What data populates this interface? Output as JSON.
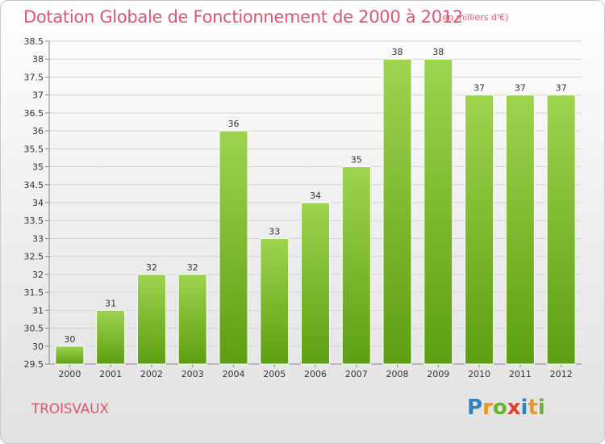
{
  "title": "Dotation Globale de Fonctionnement de 2000 à 2012",
  "subtitle": "(en milliers d'€)",
  "commune": "TROISVAUX",
  "logo": {
    "text": "Proxiti",
    "letters": [
      {
        "ch": "P",
        "color": "#2f82c7"
      },
      {
        "ch": "r",
        "color": "#e39a1f"
      },
      {
        "ch": "o",
        "color": "#6bb42a"
      },
      {
        "ch": "x",
        "color": "#e2422d"
      },
      {
        "ch": "i",
        "color": "#2f82c7"
      },
      {
        "ch": "t",
        "color": "#e39a1f"
      },
      {
        "ch": "i",
        "color": "#6bb42a"
      }
    ]
  },
  "colors": {
    "title": "#e0566f",
    "bar_top": "#9ed44e",
    "bar_bottom": "#5d9e12",
    "grid": "#d4d4d4",
    "axis_text": "#333333"
  },
  "chart_data": {
    "type": "bar",
    "categories": [
      "2000",
      "2001",
      "2002",
      "2003",
      "2004",
      "2005",
      "2006",
      "2007",
      "2008",
      "2009",
      "2010",
      "2011",
      "2012"
    ],
    "values": [
      30,
      31,
      32,
      32,
      36,
      33,
      34,
      35,
      38,
      38,
      37,
      37,
      37
    ],
    "value_labels": [
      "30",
      "31",
      "32",
      "32",
      "36",
      "33",
      "34",
      "35",
      "38",
      "38",
      "37",
      "37",
      "37"
    ],
    "ylim": [
      29.5,
      38.5
    ],
    "yticks": [
      "29.5",
      "30",
      "30.5",
      "31",
      "31.5",
      "32",
      "32.5",
      "33",
      "33.5",
      "34",
      "34.5",
      "35",
      "35.5",
      "36",
      "36.5",
      "37",
      "37.5",
      "38",
      "38.5"
    ],
    "ytick_values": [
      29.5,
      30,
      30.5,
      31,
      31.5,
      32,
      32.5,
      33,
      33.5,
      34,
      34.5,
      35,
      35.5,
      36,
      36.5,
      37,
      37.5,
      38,
      38.5
    ],
    "grid": true,
    "legend": "none",
    "xlabel": "",
    "ylabel": ""
  }
}
